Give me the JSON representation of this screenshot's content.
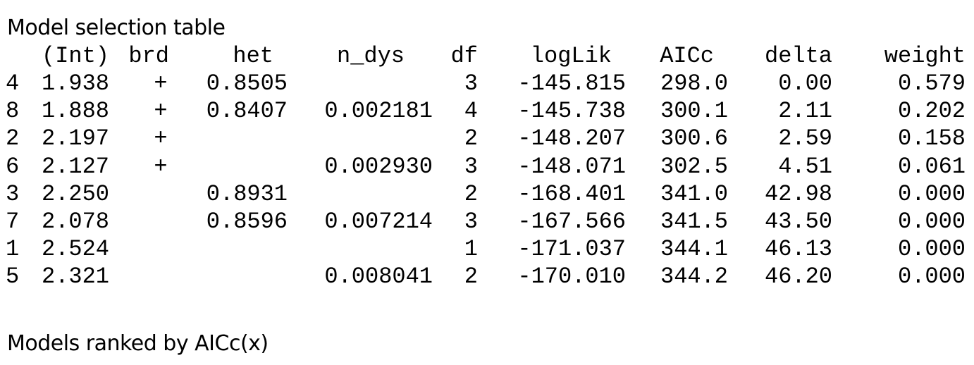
{
  "title": "Model selection table",
  "footer": "Models ranked by AICc(x)",
  "table": {
    "headers": [
      "(Int)",
      "brd",
      "het",
      "n_dys",
      "df",
      "logLik",
      "AICc",
      "delta",
      "weight"
    ],
    "rows": [
      {
        "id": "4",
        "int": "1.938",
        "brd": "+",
        "het": "0.8505",
        "n_dys": "",
        "df": "3",
        "logLik": "-145.815",
        "AICc": "298.0",
        "delta": "0.00",
        "weight": "0.579"
      },
      {
        "id": "8",
        "int": "1.888",
        "brd": "+",
        "het": "0.8407",
        "n_dys": "0.002181",
        "df": "4",
        "logLik": "-145.738",
        "AICc": "300.1",
        "delta": "2.11",
        "weight": "0.202"
      },
      {
        "id": "2",
        "int": "2.197",
        "brd": "+",
        "het": "",
        "n_dys": "",
        "df": "2",
        "logLik": "-148.207",
        "AICc": "300.6",
        "delta": "2.59",
        "weight": "0.158"
      },
      {
        "id": "6",
        "int": "2.127",
        "brd": "+",
        "het": "",
        "n_dys": "0.002930",
        "df": "3",
        "logLik": "-148.071",
        "AICc": "302.5",
        "delta": "4.51",
        "weight": "0.061"
      },
      {
        "id": "3",
        "int": "2.250",
        "brd": "",
        "het": "0.8931",
        "n_dys": "",
        "df": "2",
        "logLik": "-168.401",
        "AICc": "341.0",
        "delta": "42.98",
        "weight": "0.000"
      },
      {
        "id": "7",
        "int": "2.078",
        "brd": "",
        "het": "0.8596",
        "n_dys": "0.007214",
        "df": "3",
        "logLik": "-167.566",
        "AICc": "341.5",
        "delta": "43.50",
        "weight": "0.000"
      },
      {
        "id": "1",
        "int": "2.524",
        "brd": "",
        "het": "",
        "n_dys": "",
        "df": "1",
        "logLik": "-171.037",
        "AICc": "344.1",
        "delta": "46.13",
        "weight": "0.000"
      },
      {
        "id": "5",
        "int": "2.321",
        "brd": "",
        "het": "",
        "n_dys": "0.008041",
        "df": "2",
        "logLik": "-170.010",
        "AICc": "344.2",
        "delta": "46.20",
        "weight": "0.000"
      }
    ]
  }
}
